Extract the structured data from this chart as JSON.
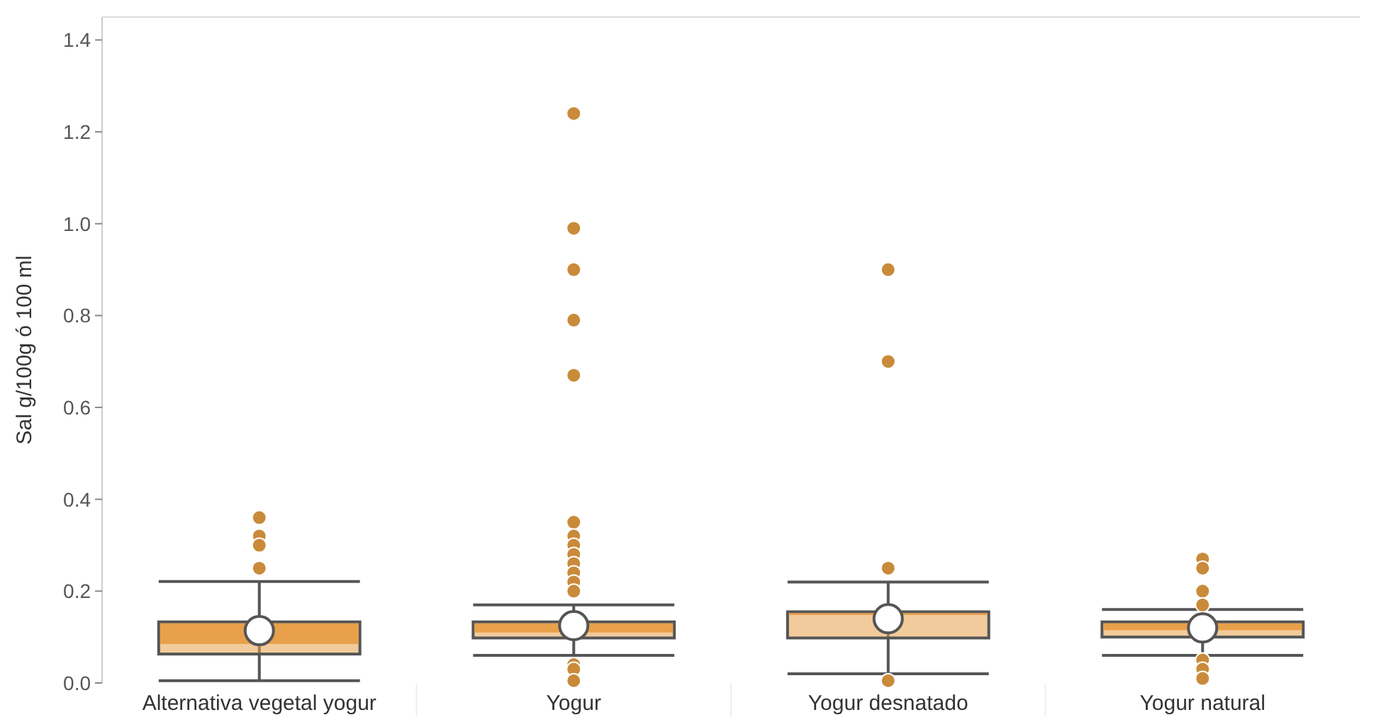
{
  "chart_data": {
    "type": "box",
    "ylabel": "Sal g/100g ó 100 ml",
    "categories": [
      "Alternativa vegetal yogur",
      "Yogur",
      "Yogur desnatado",
      "Yogur natural"
    ],
    "ylim": [
      0,
      1.45
    ],
    "yticks": [
      {
        "value": 0,
        "label": "0.0"
      },
      0.2,
      0.4,
      0.6,
      0.8,
      {
        "value": 1,
        "label": "1.0"
      },
      1.2,
      1.4
    ],
    "grid": false,
    "series": [
      {
        "color": "#e8a04a",
        "boxes": [
          {
            "low": 0.005,
            "q1": 0.063,
            "median": 0.085,
            "q3": 0.133,
            "high": 0.221,
            "mean": 0.114,
            "outliers": [
              0.36,
              0.32,
              0.3,
              0.25
            ]
          },
          {
            "low": 0.06,
            "q1": 0.098,
            "median": 0.11,
            "q3": 0.133,
            "high": 0.17,
            "mean": 0.125,
            "outliers": [
              1.24,
              0.99,
              0.9,
              0.79,
              0.67,
              0.35,
              0.32,
              0.3,
              0.28,
              0.26,
              0.24,
              0.22,
              0.2,
              0.04,
              0.03,
              0.005
            ]
          },
          {
            "low": 0.02,
            "q1": 0.098,
            "median": 0.148,
            "q3": 0.155,
            "high": 0.22,
            "mean": 0.14,
            "outliers": [
              0.9,
              0.7,
              0.25,
              0.005
            ]
          },
          {
            "low": 0.06,
            "q1": 0.1,
            "median": 0.115,
            "q3": 0.133,
            "high": 0.16,
            "mean": 0.12,
            "outliers": [
              0.27,
              0.25,
              0.2,
              0.17,
              0.05,
              0.03,
              0.01
            ]
          }
        ]
      }
    ]
  }
}
